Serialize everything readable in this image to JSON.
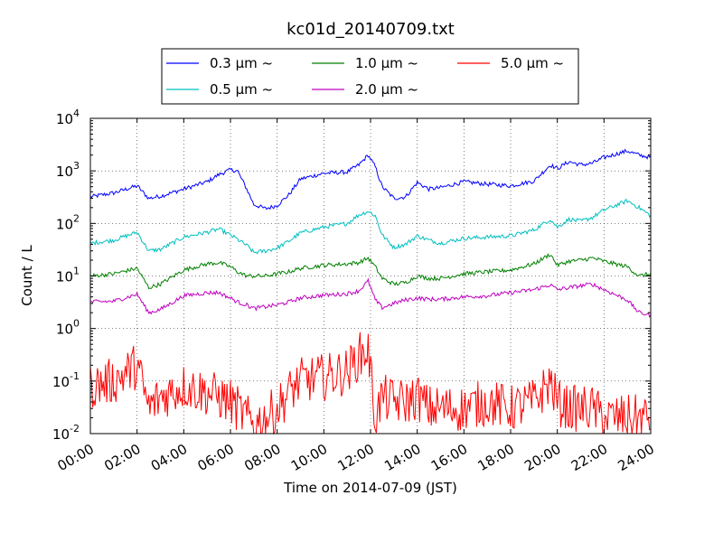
{
  "chart_data": {
    "type": "line",
    "title": "kc01d_20140709.txt",
    "xlabel": "Time on 2014-07-09 (JST)",
    "ylabel": "Count / L",
    "xscale": "time",
    "yscale": "log",
    "xlim": [
      "2014-07-09 00:00",
      "2014-07-10 00:00"
    ],
    "ylim": [
      0.01,
      10000
    ],
    "grid": true,
    "legend_position": "top-center",
    "x_tick_labels": [
      "00:00",
      "02:00",
      "04:00",
      "06:00",
      "08:00",
      "10:00",
      "12:00",
      "14:00",
      "16:00",
      "18:00",
      "20:00",
      "22:00",
      "24:00"
    ],
    "y_tick_labels": [
      {
        "base": "10",
        "exp": "-2"
      },
      {
        "base": "10",
        "exp": "-1"
      },
      {
        "base": "10",
        "exp": "0"
      },
      {
        "base": "10",
        "exp": "1"
      },
      {
        "base": "10",
        "exp": "2"
      },
      {
        "base": "10",
        "exp": "3"
      },
      {
        "base": "10",
        "exp": "4"
      }
    ],
    "x_hours": [
      0,
      1,
      2,
      2.5,
      3,
      4,
      5,
      5.5,
      6,
      6.3,
      6.7,
      7,
      7.5,
      8,
      8.5,
      9,
      10,
      11,
      11.5,
      11.9,
      12.2,
      12.5,
      13,
      13.5,
      14,
      14.5,
      15,
      16,
      17,
      18,
      19,
      19.7,
      20,
      20.5,
      21,
      21.5,
      22,
      23,
      23.5,
      24
    ],
    "series": [
      {
        "name": "0.3 μm ~",
        "legend_label": "0.3 μm  ~",
        "color": "#0000ff",
        "values": [
          320,
          380,
          520,
          300,
          330,
          450,
          620,
          850,
          1050,
          1000,
          450,
          230,
          190,
          220,
          350,
          700,
          900,
          950,
          1300,
          2000,
          1200,
          500,
          300,
          320,
          600,
          450,
          480,
          620,
          560,
          520,
          640,
          1300,
          1100,
          1500,
          1300,
          1400,
          1800,
          2400,
          2000,
          1800
        ]
      },
      {
        "name": "0.5 μm ~",
        "legend_label": "0.5 μm  ~",
        "color": "#00bfbf",
        "values": [
          42,
          48,
          68,
          30,
          32,
          55,
          68,
          78,
          60,
          50,
          38,
          28,
          30,
          34,
          46,
          66,
          85,
          100,
          145,
          170,
          140,
          60,
          35,
          40,
          58,
          48,
          42,
          52,
          55,
          58,
          75,
          120,
          85,
          120,
          110,
          130,
          180,
          270,
          200,
          140
        ]
      },
      {
        "name": "1.0 μm ~",
        "legend_label": "1.0 μm  ~",
        "color": "#008000",
        "values": [
          10,
          11,
          14,
          6,
          7,
          13,
          17,
          18,
          15,
          12,
          10,
          10,
          10,
          11,
          12,
          14,
          16,
          17,
          18,
          22,
          15,
          9,
          7,
          7.5,
          10,
          9,
          9,
          11,
          12,
          13,
          17,
          26,
          16,
          19,
          20,
          22,
          19,
          15,
          10,
          11
        ]
      },
      {
        "name": "2.0 μm ~",
        "legend_label": "2.0 μm  ~",
        "color": "#bf00bf",
        "values": [
          3.2,
          3.3,
          4.5,
          2,
          2.3,
          4.2,
          4.8,
          4.8,
          3.8,
          3.2,
          2.8,
          2.4,
          2.6,
          2.8,
          3.2,
          3.8,
          4.3,
          4.6,
          5.2,
          8,
          3.5,
          2.5,
          3,
          3.5,
          3.8,
          3.6,
          3.6,
          4,
          4.2,
          4.8,
          5.5,
          6.8,
          5.5,
          6,
          6.5,
          7,
          5.5,
          3.5,
          2,
          1.8
        ]
      },
      {
        "name": "5.0 μm ~",
        "legend_label": "5.0 μm  ~",
        "color": "#ff0000",
        "values": [
          0.08,
          0.1,
          0.2,
          0.03,
          0.05,
          0.08,
          0.06,
          0.05,
          0.04,
          0.03,
          0.02,
          0.015,
          0.02,
          0.03,
          0.06,
          0.1,
          0.12,
          0.15,
          0.3,
          0.4,
          0.02,
          0.05,
          0.04,
          0.04,
          0.05,
          0.03,
          0.03,
          0.03,
          0.04,
          0.03,
          0.04,
          0.1,
          0.04,
          0.03,
          0.03,
          0.03,
          0.02,
          0.02,
          0.02,
          0.02
        ]
      }
    ]
  }
}
